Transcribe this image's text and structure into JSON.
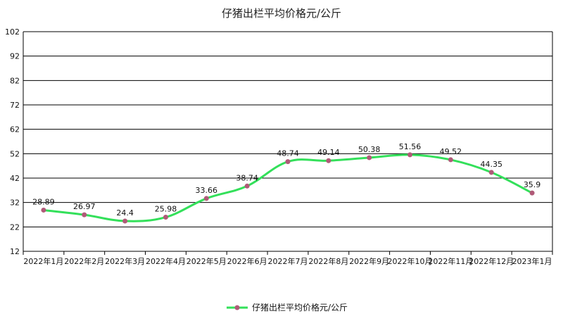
{
  "chart_data": {
    "type": "line",
    "title": "仔猪出栏平均价格元/公斤",
    "categories": [
      "2022年1月",
      "2022年2月",
      "2022年3月",
      "2022年4月",
      "2022年5月",
      "2022年6月",
      "2022年7月",
      "2022年8月",
      "2022年9月",
      "2022年10月",
      "2022年11月",
      "2022年12月",
      "2023年1月"
    ],
    "series": [
      {
        "name": "仔猪出栏平均价格元/公斤",
        "values": [
          28.89,
          26.97,
          24.4,
          25.98,
          33.66,
          38.74,
          48.74,
          49.14,
          50.38,
          51.56,
          49.52,
          44.35,
          35.9
        ],
        "labels": [
          "28.89",
          "26.97",
          "24.4",
          "25.98",
          "33.66",
          "38.74",
          "48.74",
          "49.14",
          "50.38",
          "51.56",
          "49.52",
          "44.35",
          "35.9"
        ],
        "line_color": "#33e05a",
        "marker_color": "#b05a78"
      }
    ],
    "yticks": [
      "12",
      "22",
      "32",
      "42",
      "52",
      "62",
      "72",
      "82",
      "92",
      "102"
    ],
    "ylim": [
      12,
      102
    ],
    "grid": true,
    "legend": "bottom-center"
  }
}
